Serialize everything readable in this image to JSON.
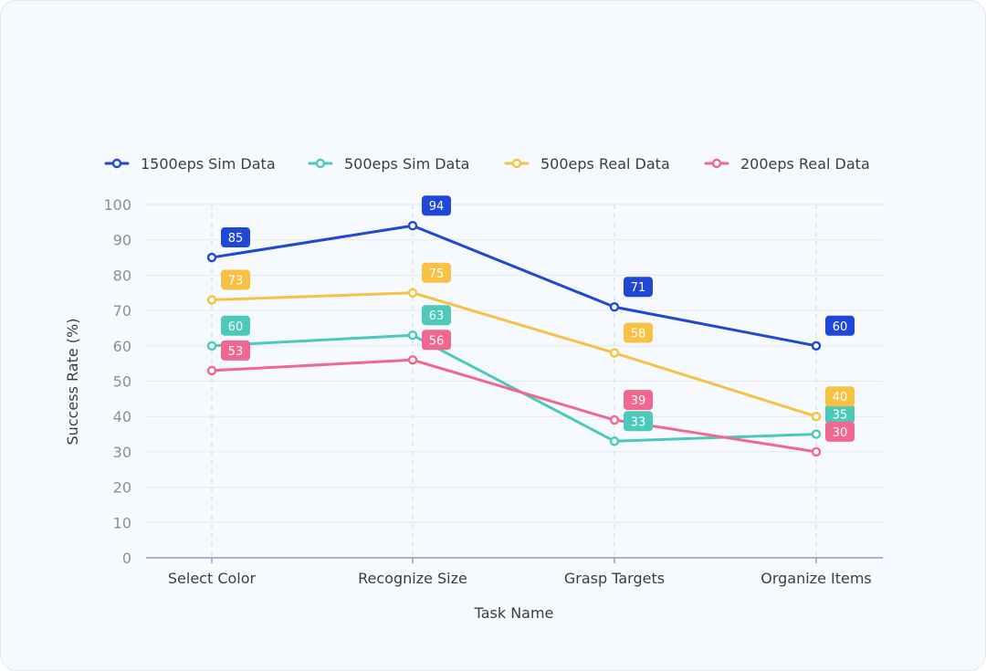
{
  "chart_data": {
    "type": "line",
    "categories": [
      "Select Color",
      "Recognize Size",
      "Grasp Targets",
      "Organize Items"
    ],
    "series": [
      {
        "name": "1500eps Sim Data",
        "color": "#1f48d6",
        "values": [
          85,
          94,
          71,
          60
        ]
      },
      {
        "name": "500eps Sim Data",
        "color": "#4cc9bb",
        "values": [
          60,
          63,
          33,
          35
        ]
      },
      {
        "name": "500eps Real Data",
        "color": "#f7c244",
        "values": [
          73,
          75,
          58,
          40
        ]
      },
      {
        "name": "200eps Real Data",
        "color": "#f2678f",
        "values": [
          53,
          56,
          39,
          30
        ]
      }
    ],
    "xlabel": "Task Name",
    "ylabel": "Success Rate (%)",
    "ylim": [
      0,
      100
    ],
    "yticks": [
      0,
      10,
      20,
      30,
      40,
      50,
      60,
      70,
      80,
      90,
      100
    ],
    "grid": true,
    "legend": "top"
  }
}
